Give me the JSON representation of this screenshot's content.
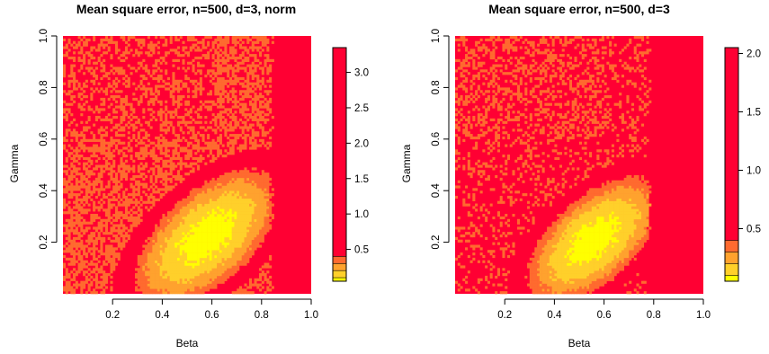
{
  "chart_data": [
    {
      "type": "heatmap",
      "title": "Mean square error, n=500, d=3, norm",
      "xlabel": "Beta",
      "ylabel": "Gamma",
      "xlim": [
        0.0,
        1.0
      ],
      "ylim": [
        0.0,
        1.0
      ],
      "x_ticks": [
        "0.2",
        "0.4",
        "0.6",
        "0.8",
        "1.0"
      ],
      "y_ticks": [
        "0.2",
        "0.4",
        "0.6",
        "0.8",
        "1.0"
      ],
      "colorbar": {
        "range": [
          0.05,
          3.35
        ],
        "ticks": [
          "0.5",
          "1.0",
          "1.5",
          "2.0",
          "2.5",
          "3.0"
        ],
        "levels": [
          0.1,
          0.2,
          0.3,
          0.4,
          3.35
        ],
        "palette": [
          "#ffff00",
          "#ffd02a",
          "#ffa22e",
          "#ff6a2f",
          "#ff0033"
        ]
      },
      "features": {
        "basin_center": [
          0.58,
          0.22
        ],
        "basin_spread": [
          0.14,
          0.12
        ],
        "basin_tilt": 0.7,
        "cutoff_beta": 0.84,
        "noise_region_gamma_above": 0.6
      }
    },
    {
      "type": "heatmap",
      "title": "Mean square error, n=500, d=3",
      "xlabel": "Beta",
      "ylabel": "Gamma",
      "xlim": [
        0.0,
        1.0
      ],
      "ylim": [
        0.0,
        1.0
      ],
      "x_ticks": [
        "0.2",
        "0.4",
        "0.6",
        "0.8",
        "1.0"
      ],
      "y_ticks": [
        "0.2",
        "0.4",
        "0.6",
        "0.8",
        "1.0"
      ],
      "colorbar": {
        "range": [
          0.05,
          2.05
        ],
        "ticks": [
          "0.5",
          "1.0",
          "1.5",
          "2.0"
        ],
        "levels": [
          0.1,
          0.2,
          0.3,
          0.4,
          2.05
        ],
        "palette": [
          "#ffff00",
          "#ffd02a",
          "#ffa22e",
          "#ff6a2f",
          "#ff0033"
        ]
      },
      "features": {
        "basin_center": [
          0.56,
          0.21
        ],
        "basin_spread": [
          0.13,
          0.11
        ],
        "basin_tilt": 0.7,
        "cutoff_beta": 0.78,
        "noise_region_gamma_above": 0.6
      }
    }
  ]
}
